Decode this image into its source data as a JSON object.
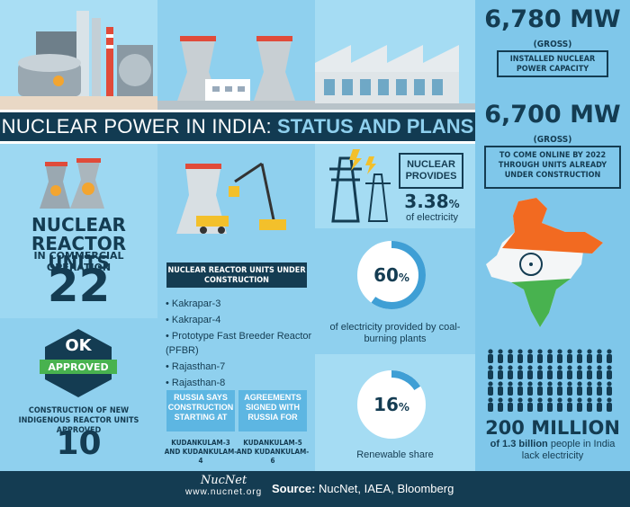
{
  "header": {
    "title_part1": "NUCLEAR POWER IN INDIA:",
    "title_part2": "STATUS AND PLANS"
  },
  "right_column": {
    "capacity_value": "6,780 MW",
    "capacity_gross": "(GROSS)",
    "capacity_label": "INSTALLED NUCLEAR POWER CAPACITY",
    "planned_value": "6,700 MW",
    "planned_gross": "(GROSS)",
    "planned_label": "TO COME ONLINE BY 2022 THROUGH UNITS ALREADY UNDER CONSTRUCTION",
    "population_value": "200 MILLION",
    "population_label_bold": "of 1.3 billion",
    "population_label_rest": " people in India lack electricity"
  },
  "left_column": {
    "reactor_title": "NUCLEAR REACTOR UNITS",
    "reactor_sub": "IN COMMERCIAL OPERATION",
    "reactor_count": "22",
    "ok_text": "OK",
    "approved_text": "APPROVED",
    "new_units_label": "CONSTRUCTION OF NEW INDIGENOUS REACTOR UNITS APPROVED",
    "new_units_count": "10"
  },
  "middle_column": {
    "construction_title": "NUCLEAR REACTOR UNITS UNDER CONSTRUCTION",
    "construction_list": [
      "Kakrapar-3",
      "Kakrapar-4",
      "Prototype Fast Breeder Reactor (PFBR)",
      "Rajasthan-7",
      "Rajasthan-8"
    ],
    "russia_box1": "RUSSIA SAYS CONSTRUCTION STARTING AT",
    "russia_box2": "AGREEMENTS SIGNED WITH RUSSIA FOR",
    "russia_units1": "KUDANKULAM-3 AND KUDANKULAM-4",
    "russia_units2": "KUDANKULAM-5 AND KUDANKULAM-6"
  },
  "stats_column": {
    "nuclear_provides": "NUCLEAR PROVIDES",
    "nuclear_share": "3.38",
    "nuclear_pct": "%",
    "nuclear_share_label": "of electricity",
    "coal_value": "60",
    "coal_pct": "%",
    "coal_fraction": 0.6,
    "coal_label": "of electricity provided by coal-burning plants",
    "renewable_value": "16",
    "renewable_pct": "%",
    "renewable_fraction": 0.16,
    "renewable_label": "Renewable share"
  },
  "footer": {
    "logo_text": "NucNet",
    "url": "www.nucnet.org",
    "source_label": "Source:",
    "source_text": " NucNet, IAEA, Bloomberg"
  },
  "colors": {
    "dark_navy": "#143c52",
    "light_blue": "#8fd0ee",
    "saffron": "#f26a21",
    "green": "#48b24f"
  }
}
